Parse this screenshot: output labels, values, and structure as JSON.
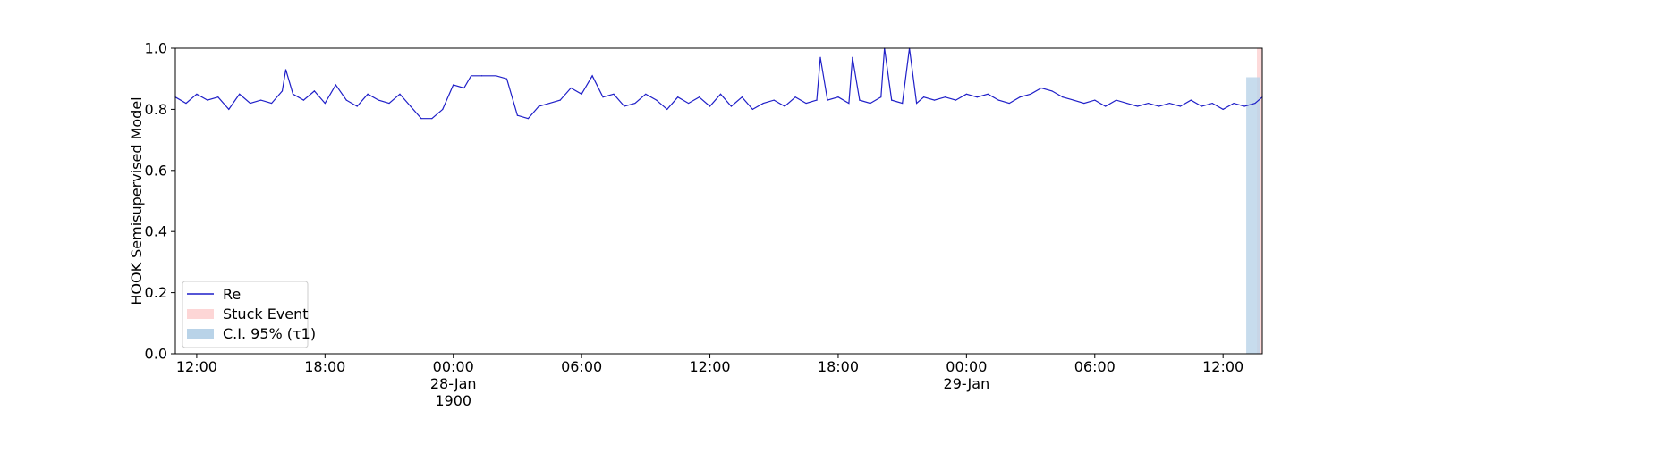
{
  "chart_data": {
    "type": "line",
    "ylabel": "HOOK Semisupervised Model",
    "ylim": [
      0.0,
      1.0
    ],
    "xlim": [
      "1900-01-27T11:00",
      "1900-01-29T13:50"
    ],
    "y_ticks": [
      "0.0",
      "0.2",
      "0.4",
      "0.6",
      "0.8",
      "1.0"
    ],
    "x_ticks": [
      {
        "t": "1900-01-27T12:00",
        "label": "12:00"
      },
      {
        "t": "1900-01-27T18:00",
        "label": "18:00"
      },
      {
        "t": "1900-01-28T00:00",
        "label": "00:00",
        "sub": "28-Jan",
        "sub2": "1900"
      },
      {
        "t": "1900-01-28T06:00",
        "label": "06:00"
      },
      {
        "t": "1900-01-28T12:00",
        "label": "12:00"
      },
      {
        "t": "1900-01-28T18:00",
        "label": "18:00"
      },
      {
        "t": "1900-01-29T00:00",
        "label": "00:00",
        "sub": "29-Jan"
      },
      {
        "t": "1900-01-29T06:00",
        "label": "06:00"
      },
      {
        "t": "1900-01-29T12:00",
        "label": "12:00"
      }
    ],
    "legend_position": "lower-left",
    "series": [
      {
        "name": "Re",
        "color": "#1f1fc8",
        "points": [
          [
            "1900-01-27T11:00",
            0.84
          ],
          [
            "1900-01-27T11:30",
            0.82
          ],
          [
            "1900-01-27T12:00",
            0.85
          ],
          [
            "1900-01-27T12:30",
            0.83
          ],
          [
            "1900-01-27T13:00",
            0.84
          ],
          [
            "1900-01-27T13:30",
            0.8
          ],
          [
            "1900-01-27T14:00",
            0.85
          ],
          [
            "1900-01-27T14:30",
            0.82
          ],
          [
            "1900-01-27T15:00",
            0.83
          ],
          [
            "1900-01-27T15:30",
            0.82
          ],
          [
            "1900-01-27T16:00",
            0.86
          ],
          [
            "1900-01-27T16:10",
            0.93
          ],
          [
            "1900-01-27T16:30",
            0.85
          ],
          [
            "1900-01-27T17:00",
            0.83
          ],
          [
            "1900-01-27T17:30",
            0.86
          ],
          [
            "1900-01-27T18:00",
            0.82
          ],
          [
            "1900-01-27T18:30",
            0.88
          ],
          [
            "1900-01-27T19:00",
            0.83
          ],
          [
            "1900-01-27T19:30",
            0.81
          ],
          [
            "1900-01-27T20:00",
            0.85
          ],
          [
            "1900-01-27T20:30",
            0.83
          ],
          [
            "1900-01-27T21:00",
            0.82
          ],
          [
            "1900-01-27T21:30",
            0.85
          ],
          [
            "1900-01-27T22:00",
            0.81
          ],
          [
            "1900-01-27T22:30",
            0.77
          ],
          [
            "1900-01-27T23:00",
            0.77
          ],
          [
            "1900-01-27T23:30",
            0.8
          ],
          [
            "1900-01-28T00:00",
            0.88
          ],
          [
            "1900-01-28T00:30",
            0.87
          ],
          [
            "1900-01-28T00:50",
            0.91
          ],
          [
            "1900-01-28T01:20",
            0.91
          ],
          [
            "1900-01-28T02:00",
            0.91
          ],
          [
            "1900-01-28T02:30",
            0.9
          ],
          [
            "1900-01-28T03:00",
            0.78
          ],
          [
            "1900-01-28T03:30",
            0.77
          ],
          [
            "1900-01-28T04:00",
            0.81
          ],
          [
            "1900-01-28T04:30",
            0.82
          ],
          [
            "1900-01-28T05:00",
            0.83
          ],
          [
            "1900-01-28T05:30",
            0.87
          ],
          [
            "1900-01-28T06:00",
            0.85
          ],
          [
            "1900-01-28T06:30",
            0.91
          ],
          [
            "1900-01-28T07:00",
            0.84
          ],
          [
            "1900-01-28T07:30",
            0.85
          ],
          [
            "1900-01-28T08:00",
            0.81
          ],
          [
            "1900-01-28T08:30",
            0.82
          ],
          [
            "1900-01-28T09:00",
            0.85
          ],
          [
            "1900-01-28T09:30",
            0.83
          ],
          [
            "1900-01-28T10:00",
            0.8
          ],
          [
            "1900-01-28T10:30",
            0.84
          ],
          [
            "1900-01-28T11:00",
            0.82
          ],
          [
            "1900-01-28T11:30",
            0.84
          ],
          [
            "1900-01-28T12:00",
            0.81
          ],
          [
            "1900-01-28T12:30",
            0.85
          ],
          [
            "1900-01-28T13:00",
            0.81
          ],
          [
            "1900-01-28T13:30",
            0.84
          ],
          [
            "1900-01-28T14:00",
            0.8
          ],
          [
            "1900-01-28T14:30",
            0.82
          ],
          [
            "1900-01-28T15:00",
            0.83
          ],
          [
            "1900-01-28T15:30",
            0.81
          ],
          [
            "1900-01-28T16:00",
            0.84
          ],
          [
            "1900-01-28T16:30",
            0.82
          ],
          [
            "1900-01-28T17:00",
            0.83
          ],
          [
            "1900-01-28T17:10",
            0.97
          ],
          [
            "1900-01-28T17:30",
            0.83
          ],
          [
            "1900-01-28T18:00",
            0.84
          ],
          [
            "1900-01-28T18:30",
            0.82
          ],
          [
            "1900-01-28T18:40",
            0.97
          ],
          [
            "1900-01-28T19:00",
            0.83
          ],
          [
            "1900-01-28T19:30",
            0.82
          ],
          [
            "1900-01-28T20:00",
            0.84
          ],
          [
            "1900-01-28T20:10",
            1.0
          ],
          [
            "1900-01-28T20:30",
            0.83
          ],
          [
            "1900-01-28T21:00",
            0.82
          ],
          [
            "1900-01-28T21:20",
            1.0
          ],
          [
            "1900-01-28T21:40",
            0.82
          ],
          [
            "1900-01-28T22:00",
            0.84
          ],
          [
            "1900-01-28T22:30",
            0.83
          ],
          [
            "1900-01-28T23:00",
            0.84
          ],
          [
            "1900-01-28T23:30",
            0.83
          ],
          [
            "1900-01-29T00:00",
            0.85
          ],
          [
            "1900-01-29T00:30",
            0.84
          ],
          [
            "1900-01-29T01:00",
            0.85
          ],
          [
            "1900-01-29T01:30",
            0.83
          ],
          [
            "1900-01-29T02:00",
            0.82
          ],
          [
            "1900-01-29T02:30",
            0.84
          ],
          [
            "1900-01-29T03:00",
            0.85
          ],
          [
            "1900-01-29T03:30",
            0.87
          ],
          [
            "1900-01-29T04:00",
            0.86
          ],
          [
            "1900-01-29T04:30",
            0.84
          ],
          [
            "1900-01-29T05:00",
            0.83
          ],
          [
            "1900-01-29T05:30",
            0.82
          ],
          [
            "1900-01-29T06:00",
            0.83
          ],
          [
            "1900-01-29T06:30",
            0.81
          ],
          [
            "1900-01-29T07:00",
            0.83
          ],
          [
            "1900-01-29T07:30",
            0.82
          ],
          [
            "1900-01-29T08:00",
            0.81
          ],
          [
            "1900-01-29T08:30",
            0.82
          ],
          [
            "1900-01-29T09:00",
            0.81
          ],
          [
            "1900-01-29T09:30",
            0.82
          ],
          [
            "1900-01-29T10:00",
            0.81
          ],
          [
            "1900-01-29T10:30",
            0.83
          ],
          [
            "1900-01-29T11:00",
            0.81
          ],
          [
            "1900-01-29T11:30",
            0.82
          ],
          [
            "1900-01-29T12:00",
            0.8
          ],
          [
            "1900-01-29T12:30",
            0.82
          ],
          [
            "1900-01-29T13:00",
            0.81
          ],
          [
            "1900-01-29T13:30",
            0.82
          ],
          [
            "1900-01-29T13:50",
            0.84
          ]
        ]
      }
    ],
    "bands": [
      {
        "name": "Stuck Event",
        "color": "#fdd6d6",
        "x_start": "1900-01-29T13:35",
        "x_end": "1900-01-29T13:50",
        "y_start": 0.0,
        "y_end": 1.0
      },
      {
        "name": "C.I. 95% (τ1)",
        "color": "#b9d3e8",
        "x_start": "1900-01-29T13:05",
        "x_end": "1900-01-29T13:45",
        "y_start": 0.0,
        "y_end": 0.905
      }
    ],
    "legend": [
      {
        "label": "Re",
        "kind": "line",
        "color": "#1f1fc8"
      },
      {
        "label": "Stuck Event",
        "kind": "patch",
        "color": "#fdd6d6"
      },
      {
        "label": "C.I. 95% (τ1)",
        "kind": "patch",
        "color": "#b9d3e8"
      }
    ]
  }
}
